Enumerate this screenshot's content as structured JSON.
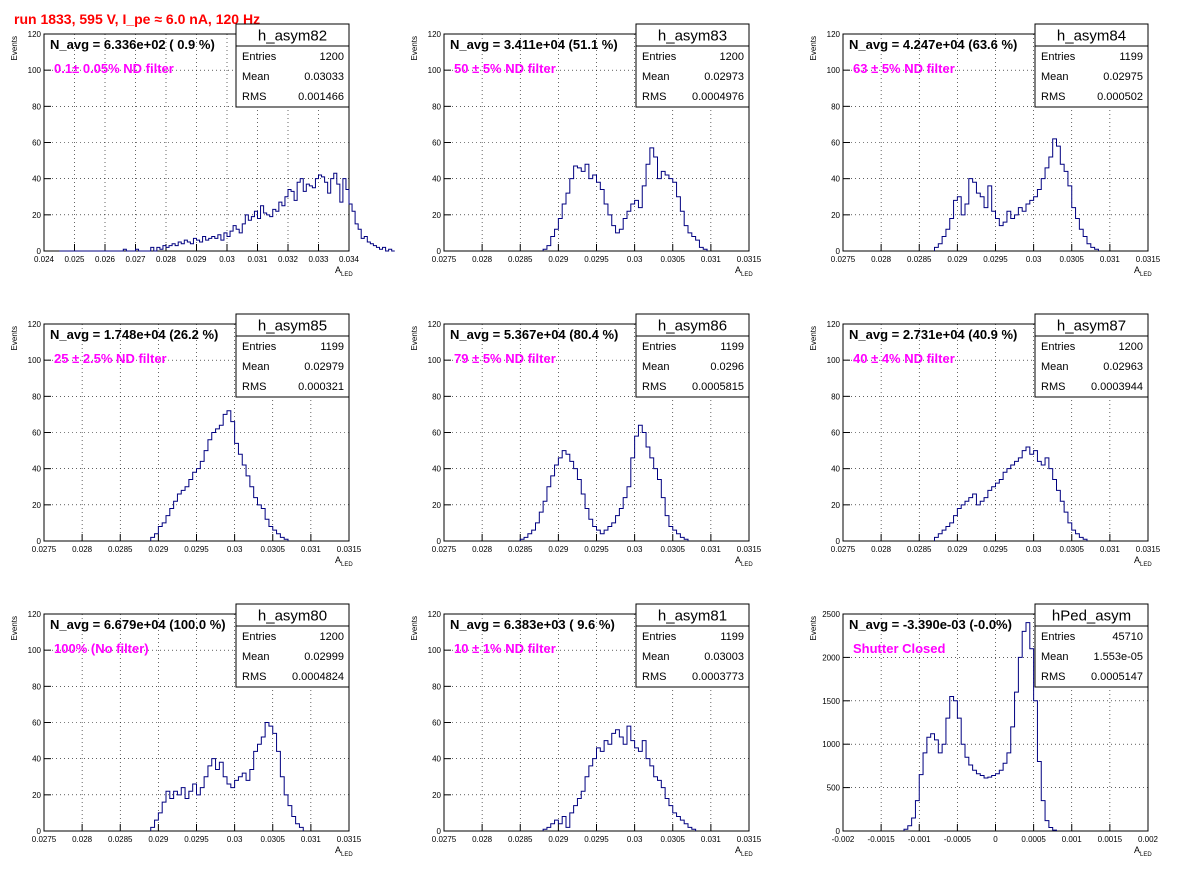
{
  "header": {
    "run_label": "run 1833,   595 V, I_pe ≈ 6.0 nA, 120 Hz",
    "color": "#ff0000"
  },
  "colors": {
    "hist": "#000080",
    "annotation": "#ff00ff",
    "grid": "#000000"
  },
  "chart_data": [
    {
      "type": "histogram",
      "name": "h_asym82",
      "ylabel": "Events",
      "xlabel": "A_LED",
      "ylim": [
        0,
        120
      ],
      "yticks": [
        0,
        20,
        40,
        60,
        80,
        100,
        120
      ],
      "xlim": [
        0.024,
        0.034
      ],
      "xticks": [
        0.024,
        0.025,
        0.026,
        0.027,
        0.028,
        0.029,
        0.03,
        0.031,
        0.032,
        0.033,
        0.034
      ],
      "xtick_labels": [
        "0.024",
        "0.025",
        "0.026",
        "0.027",
        "0.028",
        "0.029",
        "0.03",
        "0.031",
        "0.032",
        "0.033",
        "0.034"
      ],
      "title": "N_avg = 6.336e+02 ( 0.9 %)",
      "annotation": "0.1± 0.05% ND filter",
      "stats": {
        "Entries": "1200",
        "Mean": "0.03033",
        "RMS": "0.001466"
      },
      "bins": {
        "start": 0.0245,
        "width": 0.0001,
        "counts": [
          0,
          0,
          0,
          0,
          0,
          0,
          0,
          0,
          0,
          0,
          0,
          0,
          0,
          0,
          0,
          0,
          0,
          0,
          0,
          0,
          0,
          1,
          0,
          0,
          0,
          1,
          0,
          0,
          0,
          0,
          2,
          0,
          2,
          1,
          3,
          2,
          3,
          4,
          3,
          5,
          4,
          6,
          5,
          4,
          7,
          6,
          5,
          8,
          6,
          7,
          8,
          7,
          9,
          6,
          10,
          8,
          11,
          14,
          12,
          10,
          15,
          20,
          17,
          19,
          22,
          18,
          25,
          21,
          20,
          19,
          23,
          22,
          27,
          25,
          30,
          34,
          33,
          28,
          38,
          40,
          33,
          37,
          36,
          35,
          40,
          42,
          41,
          38,
          32,
          40,
          43,
          37,
          27,
          40,
          34,
          26,
          22,
          15,
          12,
          7,
          8,
          5,
          4,
          3,
          2,
          1,
          2,
          0,
          1,
          0
        ]
      }
    },
    {
      "type": "histogram",
      "name": "h_asym83",
      "ylabel": "Events",
      "xlabel": "A_LED",
      "ylim": [
        0,
        120
      ],
      "yticks": [
        0,
        20,
        40,
        60,
        80,
        100,
        120
      ],
      "xlim": [
        0.0275,
        0.0315
      ],
      "xticks": [
        0.0275,
        0.028,
        0.0285,
        0.029,
        0.0295,
        0.03,
        0.0305,
        0.031,
        0.0315
      ],
      "xtick_labels": [
        "0.0275",
        "0.028",
        "0.0285",
        "0.029",
        "0.0295",
        "0.03",
        "0.0305",
        "0.031",
        "0.0315"
      ],
      "title": "N_avg = 3.411e+04 (51.1 %)",
      "annotation": "50 ± 5% ND filter",
      "stats": {
        "Entries": "1200",
        "Mean": "0.02973",
        "RMS": "0.0004976"
      },
      "bins": {
        "start": 0.0288,
        "width": 5e-05,
        "counts": [
          1,
          3,
          8,
          12,
          18,
          26,
          32,
          40,
          47,
          46,
          44,
          48,
          40,
          42,
          38,
          34,
          26,
          20,
          14,
          10,
          12,
          18,
          22,
          26,
          28,
          24,
          36,
          48,
          57,
          52,
          40,
          44,
          42,
          40,
          38,
          30,
          22,
          14,
          10,
          8,
          6,
          2,
          1
        ]
      }
    },
    {
      "type": "histogram",
      "name": "h_asym84",
      "ylabel": "Events",
      "xlabel": "A_LED",
      "ylim": [
        0,
        120
      ],
      "yticks": [
        0,
        20,
        40,
        60,
        80,
        100,
        120
      ],
      "xlim": [
        0.0275,
        0.0315
      ],
      "xticks": [
        0.0275,
        0.028,
        0.0285,
        0.029,
        0.0295,
        0.03,
        0.0305,
        0.031,
        0.0315
      ],
      "xtick_labels": [
        "0.0275",
        "0.028",
        "0.0285",
        "0.029",
        "0.0295",
        "0.03",
        "0.0305",
        "0.031",
        "0.0315"
      ],
      "title": "N_avg = 4.247e+04 (63.6 %)",
      "annotation": "63 ± 5% ND filter",
      "stats": {
        "Entries": "1199",
        "Mean": "0.02975",
        "RMS": "0.000502"
      },
      "bins": {
        "start": 0.0287,
        "width": 5e-05,
        "counts": [
          2,
          4,
          8,
          12,
          18,
          28,
          30,
          20,
          26,
          40,
          38,
          32,
          30,
          24,
          36,
          22,
          18,
          14,
          16,
          22,
          18,
          20,
          24,
          22,
          26,
          28,
          30,
          34,
          40,
          46,
          52,
          62,
          58,
          48,
          44,
          36,
          24,
          18,
          12,
          8,
          4,
          2,
          1
        ]
      }
    },
    {
      "type": "histogram",
      "name": "h_asym85",
      "ylabel": "Events",
      "xlabel": "A_LED",
      "ylim": [
        0,
        120
      ],
      "yticks": [
        0,
        20,
        40,
        60,
        80,
        100,
        120
      ],
      "xlim": [
        0.0275,
        0.0315
      ],
      "xticks": [
        0.0275,
        0.028,
        0.0285,
        0.029,
        0.0295,
        0.03,
        0.0305,
        0.031,
        0.0315
      ],
      "xtick_labels": [
        "0.0275",
        "0.028",
        "0.0285",
        "0.029",
        "0.0295",
        "0.03",
        "0.0305",
        "0.031",
        "0.0315"
      ],
      "title": "N_avg = 1.748e+04 (26.2 %)",
      "annotation": "25 ± 2.5% ND filter",
      "stats": {
        "Entries": "1199",
        "Mean": "0.02979",
        "RMS": "0.000321"
      },
      "bins": {
        "start": 0.0289,
        "width": 5e-05,
        "counts": [
          2,
          4,
          8,
          10,
          14,
          18,
          22,
          26,
          28,
          30,
          34,
          38,
          40,
          44,
          50,
          56,
          60,
          62,
          64,
          70,
          72,
          66,
          54,
          48,
          42,
          36,
          30,
          24,
          20,
          18,
          12,
          8,
          6,
          4,
          2,
          1
        ]
      }
    },
    {
      "type": "histogram",
      "name": "h_asym86",
      "ylabel": "Events",
      "xlabel": "A_LED",
      "ylim": [
        0,
        120
      ],
      "yticks": [
        0,
        20,
        40,
        60,
        80,
        100,
        120
      ],
      "xlim": [
        0.0275,
        0.0315
      ],
      "xticks": [
        0.0275,
        0.028,
        0.0285,
        0.029,
        0.0295,
        0.03,
        0.0305,
        0.031,
        0.0315
      ],
      "xtick_labels": [
        "0.0275",
        "0.028",
        "0.0285",
        "0.029",
        "0.0295",
        "0.03",
        "0.0305",
        "0.031",
        "0.0315"
      ],
      "title": "N_avg = 5.367e+04 (80.4 %)",
      "annotation": "79 ± 5% ND filter",
      "stats": {
        "Entries": "1199",
        "Mean": "0.0296",
        "RMS": "0.0005815"
      },
      "bins": {
        "start": 0.0285,
        "width": 5e-05,
        "counts": [
          1,
          2,
          4,
          6,
          10,
          16,
          22,
          30,
          36,
          42,
          46,
          50,
          48,
          44,
          40,
          34,
          26,
          18,
          12,
          8,
          6,
          4,
          6,
          8,
          10,
          14,
          18,
          24,
          30,
          46,
          58,
          64,
          60,
          52,
          46,
          40,
          34,
          24,
          14,
          8,
          6,
          4,
          2,
          1
        ]
      }
    },
    {
      "type": "histogram",
      "name": "h_asym87",
      "ylabel": "Events",
      "xlabel": "A_LED",
      "ylim": [
        0,
        120
      ],
      "yticks": [
        0,
        20,
        40,
        60,
        80,
        100,
        120
      ],
      "xlim": [
        0.0275,
        0.0315
      ],
      "xticks": [
        0.0275,
        0.028,
        0.0285,
        0.029,
        0.0295,
        0.03,
        0.0305,
        0.031,
        0.0315
      ],
      "xtick_labels": [
        "0.0275",
        "0.028",
        "0.0285",
        "0.029",
        "0.0295",
        "0.03",
        "0.0305",
        "0.031",
        "0.0315"
      ],
      "title": "N_avg = 2.731e+04 (40.9 %)",
      "annotation": "40 ± 4% ND filter",
      "stats": {
        "Entries": "1200",
        "Mean": "0.02963",
        "RMS": "0.0003944"
      },
      "bins": {
        "start": 0.0287,
        "width": 5e-05,
        "counts": [
          2,
          4,
          6,
          8,
          10,
          14,
          18,
          20,
          22,
          24,
          26,
          20,
          22,
          24,
          28,
          30,
          32,
          34,
          38,
          40,
          42,
          44,
          46,
          50,
          52,
          48,
          50,
          44,
          42,
          46,
          40,
          34,
          28,
          22,
          16,
          10,
          6,
          4,
          2,
          1
        ]
      }
    },
    {
      "type": "histogram",
      "name": "h_asym80",
      "ylabel": "Events",
      "xlabel": "A_LED",
      "ylim": [
        0,
        120
      ],
      "yticks": [
        0,
        20,
        40,
        60,
        80,
        100,
        120
      ],
      "xlim": [
        0.0275,
        0.0315
      ],
      "xticks": [
        0.0275,
        0.028,
        0.0285,
        0.029,
        0.0295,
        0.03,
        0.0305,
        0.031,
        0.0315
      ],
      "xtick_labels": [
        "0.0275",
        "0.028",
        "0.0285",
        "0.029",
        "0.0295",
        "0.03",
        "0.0305",
        "0.031",
        "0.0315"
      ],
      "title": "N_avg = 6.679e+04 (100.0 %)",
      "annotation": "100% (No filter)",
      "stats": {
        "Entries": "1200",
        "Mean": "0.02999",
        "RMS": "0.0004824"
      },
      "bins": {
        "start": 0.0289,
        "width": 5e-05,
        "counts": [
          2,
          6,
          10,
          16,
          22,
          18,
          22,
          20,
          24,
          18,
          22,
          26,
          20,
          24,
          30,
          36,
          40,
          34,
          38,
          30,
          26,
          24,
          28,
          30,
          32,
          28,
          34,
          44,
          48,
          52,
          60,
          58,
          54,
          44,
          30,
          20,
          14,
          8,
          4,
          2
        ]
      }
    },
    {
      "type": "histogram",
      "name": "h_asym81",
      "ylabel": "Events",
      "xlabel": "A_LED",
      "ylim": [
        0,
        120
      ],
      "yticks": [
        0,
        20,
        40,
        60,
        80,
        100,
        120
      ],
      "xlim": [
        0.0275,
        0.0315
      ],
      "xticks": [
        0.0275,
        0.028,
        0.0285,
        0.029,
        0.0295,
        0.03,
        0.0305,
        0.031,
        0.0315
      ],
      "xtick_labels": [
        "0.0275",
        "0.028",
        "0.0285",
        "0.029",
        "0.0295",
        "0.03",
        "0.0305",
        "0.031",
        "0.0315"
      ],
      "title": "N_avg = 6.383e+03 ( 9.6 %)",
      "annotation": "10 ± 1% ND filter",
      "stats": {
        "Entries": "1199",
        "Mean": "0.03003",
        "RMS": "0.0003773"
      },
      "bins": {
        "start": 0.0288,
        "width": 5e-05,
        "counts": [
          1,
          2,
          4,
          6,
          4,
          8,
          2,
          10,
          14,
          18,
          22,
          30,
          36,
          40,
          46,
          44,
          50,
          48,
          54,
          56,
          52,
          48,
          58,
          50,
          46,
          44,
          50,
          40,
          36,
          30,
          28,
          24,
          18,
          14,
          10,
          8,
          6,
          4,
          2,
          1
        ]
      }
    },
    {
      "type": "histogram",
      "name": "hPed_asym",
      "ylabel": "Events",
      "xlabel": "A_LED",
      "ylim": [
        0,
        2500
      ],
      "yticks": [
        0,
        500,
        1000,
        1500,
        2000,
        2500
      ],
      "xlim": [
        -0.002,
        0.002
      ],
      "xticks": [
        -0.002,
        -0.0015,
        -0.001,
        -0.0005,
        0,
        0.0005,
        0.001,
        0.0015,
        0.002
      ],
      "xtick_labels": [
        "-0.002",
        "-0.0015",
        "-0.001",
        "-0.0005",
        "0",
        "0.0005",
        "0.001",
        "0.0015",
        "0.002"
      ],
      "title": "N_avg = -3.390e-03 (-0.0%)",
      "annotation": "Shutter Closed",
      "stats": {
        "Entries": "45710",
        "Mean": "1.553e-05",
        "RMS": "0.0005147"
      },
      "bins": {
        "start": -0.0012,
        "width": 5e-05,
        "counts": [
          20,
          60,
          150,
          350,
          650,
          900,
          1080,
          1120,
          1050,
          900,
          1000,
          1300,
          1550,
          1500,
          1300,
          1000,
          850,
          760,
          700,
          660,
          640,
          610,
          620,
          640,
          660,
          700,
          780,
          900,
          1200,
          1600,
          2000,
          2300,
          2400,
          2100,
          1500,
          800,
          350,
          120,
          40,
          10
        ]
      }
    }
  ]
}
